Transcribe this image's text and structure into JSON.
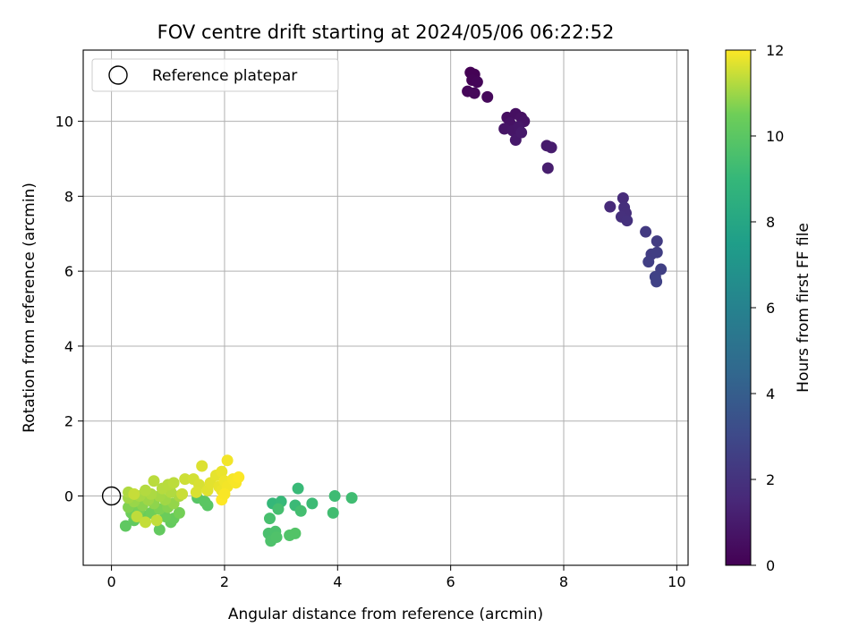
{
  "chart_data": {
    "type": "scatter",
    "title": "FOV centre drift starting at 2024/05/06 06:22:52",
    "xlabel": "Angular distance from reference (arcmin)",
    "ylabel": "Rotation from reference (arcmin)",
    "xlim": [
      -0.5,
      10.2
    ],
    "ylim": [
      -1.85,
      11.9
    ],
    "xticks": [
      0,
      2,
      4,
      6,
      8,
      10
    ],
    "yticks": [
      0,
      2,
      4,
      6,
      8,
      10
    ],
    "grid": true,
    "colorbar": {
      "label": "Hours from first FF file",
      "colormap": "viridis",
      "range": [
        0,
        12
      ],
      "ticks": [
        0,
        2,
        4,
        6,
        8,
        10,
        12
      ]
    },
    "reference": {
      "x": 0,
      "y": 0
    },
    "legend": {
      "position": "top-left",
      "entries": [
        "Reference platepar"
      ]
    },
    "points": [
      {
        "x": 6.35,
        "y": 11.3,
        "t": 0.0
      },
      {
        "x": 6.42,
        "y": 11.25,
        "t": 0.05
      },
      {
        "x": 6.38,
        "y": 11.1,
        "t": 0.1
      },
      {
        "x": 6.47,
        "y": 11.05,
        "t": 0.15
      },
      {
        "x": 6.3,
        "y": 10.8,
        "t": 0.2
      },
      {
        "x": 6.42,
        "y": 10.75,
        "t": 0.25
      },
      {
        "x": 6.65,
        "y": 10.65,
        "t": 0.3
      },
      {
        "x": 7.0,
        "y": 10.1,
        "t": 0.5
      },
      {
        "x": 7.15,
        "y": 10.2,
        "t": 0.55
      },
      {
        "x": 7.25,
        "y": 10.1,
        "t": 0.6
      },
      {
        "x": 7.05,
        "y": 9.95,
        "t": 0.65
      },
      {
        "x": 7.3,
        "y": 10.0,
        "t": 0.7
      },
      {
        "x": 6.95,
        "y": 9.8,
        "t": 0.75
      },
      {
        "x": 7.1,
        "y": 9.75,
        "t": 0.8
      },
      {
        "x": 7.2,
        "y": 9.85,
        "t": 0.85
      },
      {
        "x": 7.15,
        "y": 9.5,
        "t": 0.9
      },
      {
        "x": 7.25,
        "y": 9.7,
        "t": 0.95
      },
      {
        "x": 7.7,
        "y": 9.35,
        "t": 1.0
      },
      {
        "x": 7.78,
        "y": 9.3,
        "t": 1.05
      },
      {
        "x": 7.72,
        "y": 8.75,
        "t": 1.1
      },
      {
        "x": 8.82,
        "y": 7.72,
        "t": 1.6
      },
      {
        "x": 9.05,
        "y": 7.95,
        "t": 1.7
      },
      {
        "x": 9.07,
        "y": 7.7,
        "t": 1.75
      },
      {
        "x": 9.1,
        "y": 7.55,
        "t": 1.8
      },
      {
        "x": 9.02,
        "y": 7.45,
        "t": 1.85
      },
      {
        "x": 9.12,
        "y": 7.35,
        "t": 1.9
      },
      {
        "x": 9.45,
        "y": 7.05,
        "t": 2.3
      },
      {
        "x": 9.65,
        "y": 6.8,
        "t": 2.4
      },
      {
        "x": 9.55,
        "y": 6.45,
        "t": 2.45
      },
      {
        "x": 9.65,
        "y": 6.5,
        "t": 2.5
      },
      {
        "x": 9.5,
        "y": 6.25,
        "t": 2.55
      },
      {
        "x": 9.72,
        "y": 6.05,
        "t": 2.6
      },
      {
        "x": 9.62,
        "y": 5.85,
        "t": 2.65
      },
      {
        "x": 9.64,
        "y": 5.72,
        "t": 2.7
      },
      {
        "x": 2.85,
        "y": -0.2,
        "t": 9.0
      },
      {
        "x": 3.0,
        "y": -0.15,
        "t": 9.05
      },
      {
        "x": 3.3,
        "y": 0.2,
        "t": 9.1
      },
      {
        "x": 3.25,
        "y": -0.25,
        "t": 9.15
      },
      {
        "x": 3.55,
        "y": -0.2,
        "t": 9.2
      },
      {
        "x": 3.95,
        "y": 0.0,
        "t": 9.25
      },
      {
        "x": 4.25,
        "y": -0.05,
        "t": 9.3
      },
      {
        "x": 3.92,
        "y": -0.45,
        "t": 9.35
      },
      {
        "x": 3.35,
        "y": -0.4,
        "t": 9.4
      },
      {
        "x": 2.95,
        "y": -0.35,
        "t": 9.45
      },
      {
        "x": 2.8,
        "y": -0.6,
        "t": 9.5
      },
      {
        "x": 2.78,
        "y": -1.0,
        "t": 9.55
      },
      {
        "x": 2.9,
        "y": -0.95,
        "t": 9.6
      },
      {
        "x": 2.82,
        "y": -1.2,
        "t": 9.65
      },
      {
        "x": 2.92,
        "y": -1.1,
        "t": 9.7
      },
      {
        "x": 3.15,
        "y": -1.05,
        "t": 9.75
      },
      {
        "x": 3.25,
        "y": -1.0,
        "t": 9.8
      },
      {
        "x": 1.52,
        "y": -0.05,
        "t": 9.9
      },
      {
        "x": 1.7,
        "y": -0.25,
        "t": 9.95
      },
      {
        "x": 1.65,
        "y": -0.15,
        "t": 10.0
      },
      {
        "x": 0.25,
        "y": -0.8,
        "t": 10.1
      },
      {
        "x": 0.4,
        "y": -0.65,
        "t": 10.15
      },
      {
        "x": 0.85,
        "y": -0.9,
        "t": 10.2
      },
      {
        "x": 1.05,
        "y": -0.7,
        "t": 10.25
      },
      {
        "x": 1.1,
        "y": -0.6,
        "t": 10.3
      },
      {
        "x": 0.6,
        "y": -0.55,
        "t": 10.35
      },
      {
        "x": 0.95,
        "y": -0.55,
        "t": 10.4
      },
      {
        "x": 0.35,
        "y": -0.45,
        "t": 10.45
      },
      {
        "x": 0.7,
        "y": -0.45,
        "t": 10.5
      },
      {
        "x": 1.2,
        "y": -0.45,
        "t": 10.55
      },
      {
        "x": 0.5,
        "y": -0.35,
        "t": 10.6
      },
      {
        "x": 0.85,
        "y": -0.35,
        "t": 10.65
      },
      {
        "x": 0.3,
        "y": -0.3,
        "t": 10.7
      },
      {
        "x": 1.0,
        "y": -0.3,
        "t": 10.75
      },
      {
        "x": 0.55,
        "y": -0.25,
        "t": 10.8
      },
      {
        "x": 0.75,
        "y": -0.2,
        "t": 10.85
      },
      {
        "x": 1.1,
        "y": -0.2,
        "t": 10.9
      },
      {
        "x": 0.4,
        "y": -0.15,
        "t": 10.95
      },
      {
        "x": 0.65,
        "y": -0.1,
        "t": 11.0
      },
      {
        "x": 0.95,
        "y": -0.1,
        "t": 11.02
      },
      {
        "x": 0.3,
        "y": -0.05,
        "t": 11.05
      },
      {
        "x": 0.85,
        "y": 0.0,
        "t": 11.08
      },
      {
        "x": 0.5,
        "y": 0.0,
        "t": 11.1
      },
      {
        "x": 1.2,
        "y": 0.0,
        "t": 11.12
      },
      {
        "x": 0.7,
        "y": 0.05,
        "t": 11.15
      },
      {
        "x": 0.3,
        "y": 0.1,
        "t": 11.18
      },
      {
        "x": 1.05,
        "y": 0.1,
        "t": 11.2
      },
      {
        "x": 0.6,
        "y": 0.15,
        "t": 11.22
      },
      {
        "x": 0.9,
        "y": 0.2,
        "t": 11.25
      },
      {
        "x": 1.0,
        "y": 0.3,
        "t": 11.28
      },
      {
        "x": 0.75,
        "y": 0.4,
        "t": 11.3
      },
      {
        "x": 1.1,
        "y": 0.35,
        "t": 11.32
      },
      {
        "x": 0.45,
        "y": -0.55,
        "t": 11.35
      },
      {
        "x": 0.8,
        "y": -0.65,
        "t": 11.38
      },
      {
        "x": 0.6,
        "y": -0.7,
        "t": 11.4
      },
      {
        "x": 0.4,
        "y": 0.05,
        "t": 11.42
      },
      {
        "x": 1.25,
        "y": 0.05,
        "t": 11.45
      },
      {
        "x": 1.3,
        "y": 0.45,
        "t": 11.5
      },
      {
        "x": 1.45,
        "y": 0.45,
        "t": 11.55
      },
      {
        "x": 1.55,
        "y": 0.3,
        "t": 11.6
      },
      {
        "x": 1.5,
        "y": 0.1,
        "t": 11.62
      },
      {
        "x": 1.6,
        "y": 0.8,
        "t": 11.65
      },
      {
        "x": 1.7,
        "y": 0.15,
        "t": 11.7
      },
      {
        "x": 1.75,
        "y": 0.35,
        "t": 11.72
      },
      {
        "x": 1.85,
        "y": 0.55,
        "t": 11.75
      },
      {
        "x": 1.9,
        "y": 0.25,
        "t": 11.78
      },
      {
        "x": 1.95,
        "y": 0.65,
        "t": 11.8
      },
      {
        "x": 1.95,
        "y": 0.15,
        "t": 11.82
      },
      {
        "x": 2.0,
        "y": 0.4,
        "t": 11.85
      },
      {
        "x": 2.05,
        "y": 0.95,
        "t": 11.88
      },
      {
        "x": 2.05,
        "y": 0.25,
        "t": 11.9
      },
      {
        "x": 2.15,
        "y": 0.45,
        "t": 11.92
      },
      {
        "x": 2.2,
        "y": 0.35,
        "t": 11.95
      },
      {
        "x": 2.25,
        "y": 0.5,
        "t": 11.98
      },
      {
        "x": 1.95,
        "y": -0.1,
        "t": 12.0
      },
      {
        "x": 2.0,
        "y": 0.05,
        "t": 11.96
      }
    ]
  }
}
